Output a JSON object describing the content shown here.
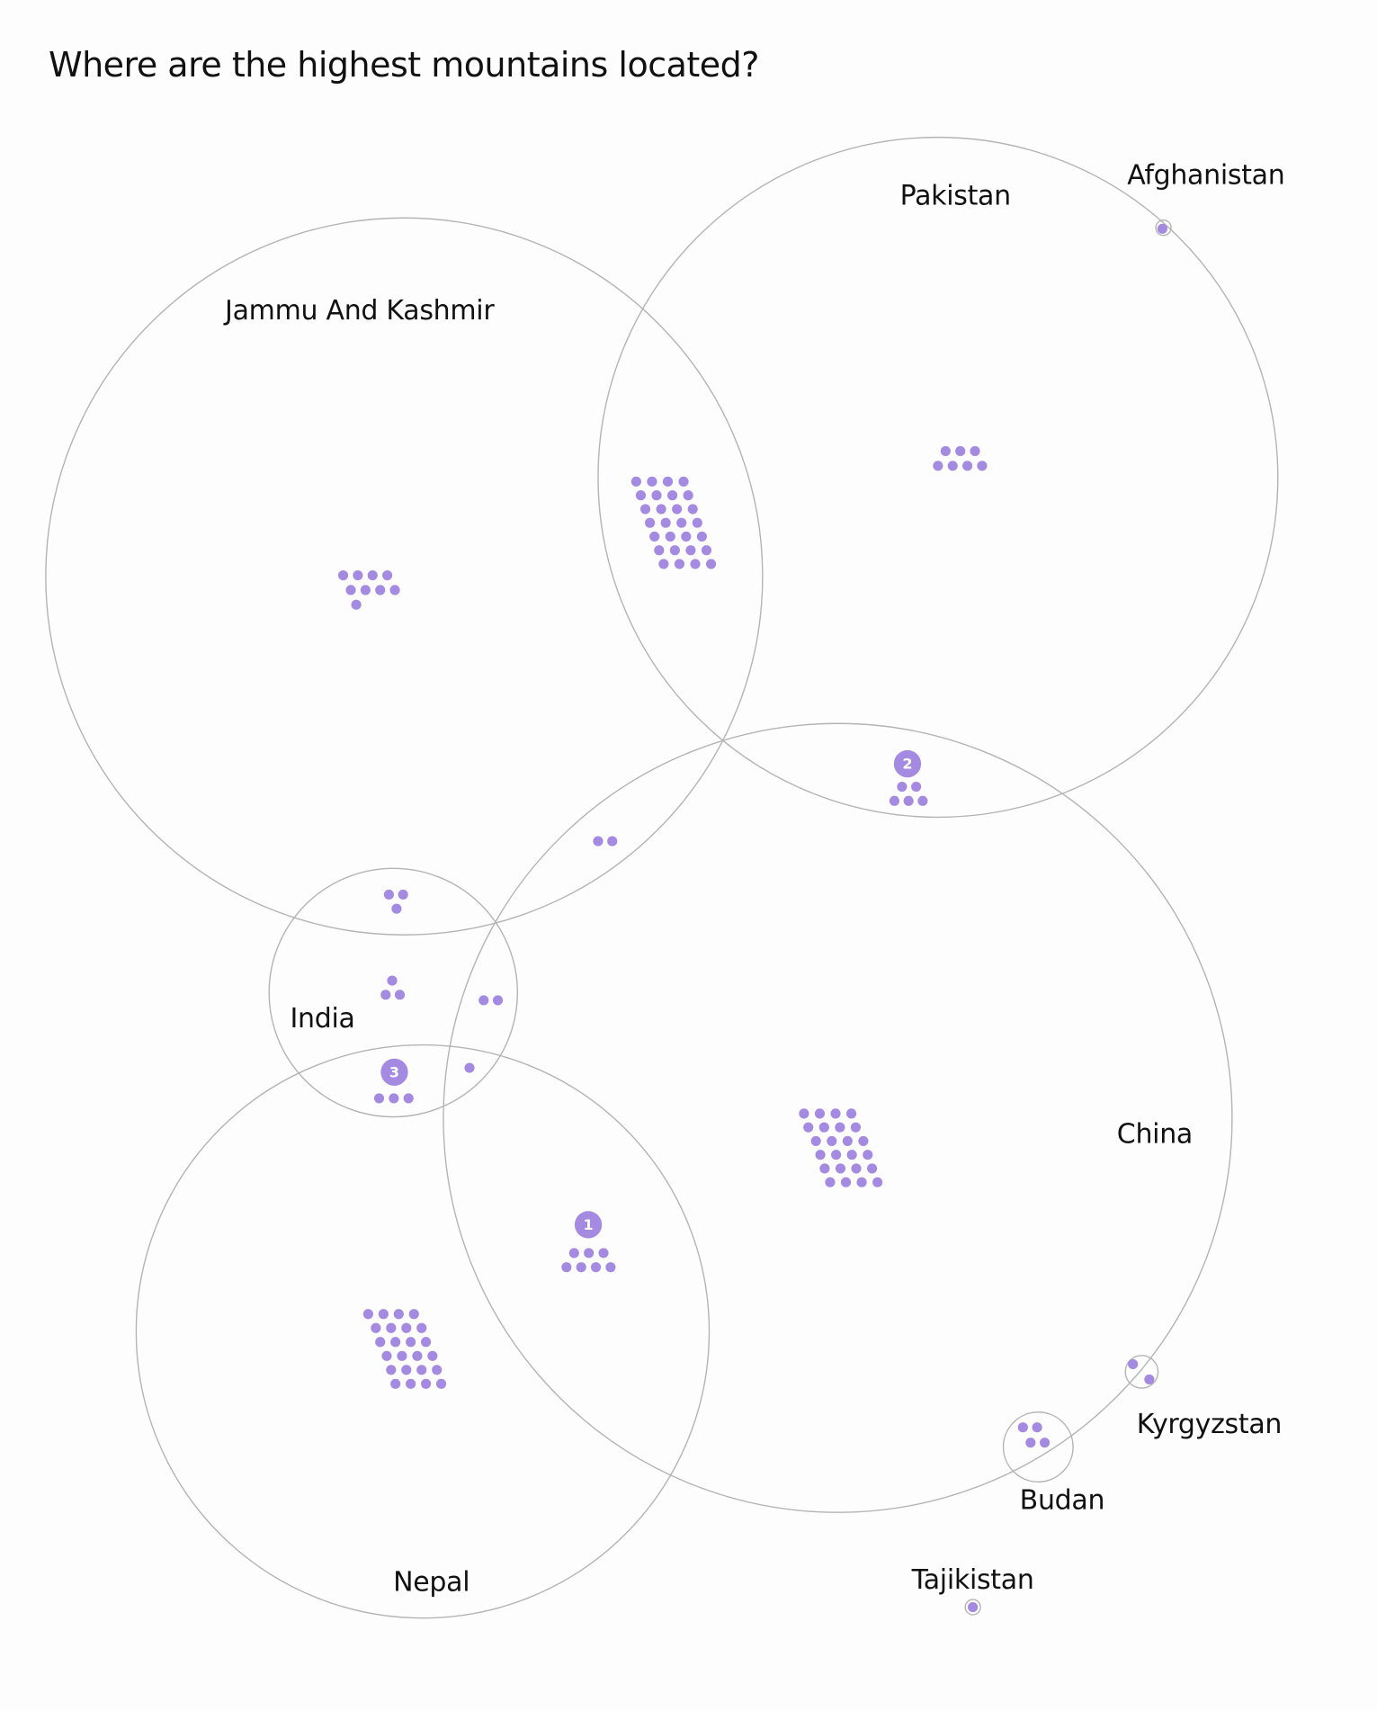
{
  "title": "Where are the highest mountains located?",
  "colors": {
    "dot": "#a48ae0",
    "circle_stroke": "#b4b4b4",
    "badge": "#a48ae0",
    "background": "#fdfdfd"
  },
  "regions": [
    {
      "key": "jammu_kashmir",
      "label": "Jammu And Kashmir"
    },
    {
      "key": "pakistan",
      "label": "Pakistan"
    },
    {
      "key": "china",
      "label": "China"
    },
    {
      "key": "india",
      "label": "India"
    },
    {
      "key": "nepal",
      "label": "Nepal"
    },
    {
      "key": "afghanistan",
      "label": "Afghanistan"
    },
    {
      "key": "kyrgyzstan",
      "label": "Kyrgyzstan"
    },
    {
      "key": "budan",
      "label": "Budan"
    },
    {
      "key": "tajikistan",
      "label": "Tajikistan"
    }
  ],
  "mountain_groups": [
    {
      "key": "jammu_kashmir_only",
      "regions": [
        "Jammu And Kashmir"
      ],
      "count": 9
    },
    {
      "key": "jammu_kashmir_pakistan",
      "regions": [
        "Jammu And Kashmir",
        "Pakistan"
      ],
      "count": 30
    },
    {
      "key": "pakistan_only",
      "regions": [
        "Pakistan"
      ],
      "count": 7
    },
    {
      "key": "afghanistan_pakistan",
      "regions": [
        "Afghanistan",
        "Pakistan"
      ],
      "count": 1
    },
    {
      "key": "pakistan_china",
      "regions": [
        "Pakistan",
        "China"
      ],
      "count": 5,
      "ranked_peak": "2"
    },
    {
      "key": "jammu_kashmir_china",
      "regions": [
        "Jammu And Kashmir",
        "China"
      ],
      "count": 2
    },
    {
      "key": "jammu_kashmir_india",
      "regions": [
        "Jammu And Kashmir",
        "India"
      ],
      "count": 3
    },
    {
      "key": "india_only",
      "regions": [
        "India"
      ],
      "count": 3
    },
    {
      "key": "india_china",
      "regions": [
        "India",
        "China"
      ],
      "count": 2
    },
    {
      "key": "india_nepal",
      "regions": [
        "India",
        "Nepal"
      ],
      "count": 3,
      "ranked_peak": "3"
    },
    {
      "key": "india_nepal_china",
      "regions": [
        "India",
        "Nepal",
        "China"
      ],
      "count": 1
    },
    {
      "key": "china_only",
      "regions": [
        "China"
      ],
      "count": 24
    },
    {
      "key": "nepal_china",
      "regions": [
        "Nepal",
        "China"
      ],
      "count": 7,
      "ranked_peak": "1"
    },
    {
      "key": "nepal_only",
      "regions": [
        "Nepal"
      ],
      "count": 24
    },
    {
      "key": "china_kyrgyzstan",
      "regions": [
        "China",
        "Kyrgyzstan"
      ],
      "count": 2
    },
    {
      "key": "china_budan",
      "regions": [
        "China",
        "Budan"
      ],
      "count": 4
    },
    {
      "key": "tajikistan_only",
      "regions": [
        "Tajikistan"
      ],
      "count": 1
    }
  ]
}
